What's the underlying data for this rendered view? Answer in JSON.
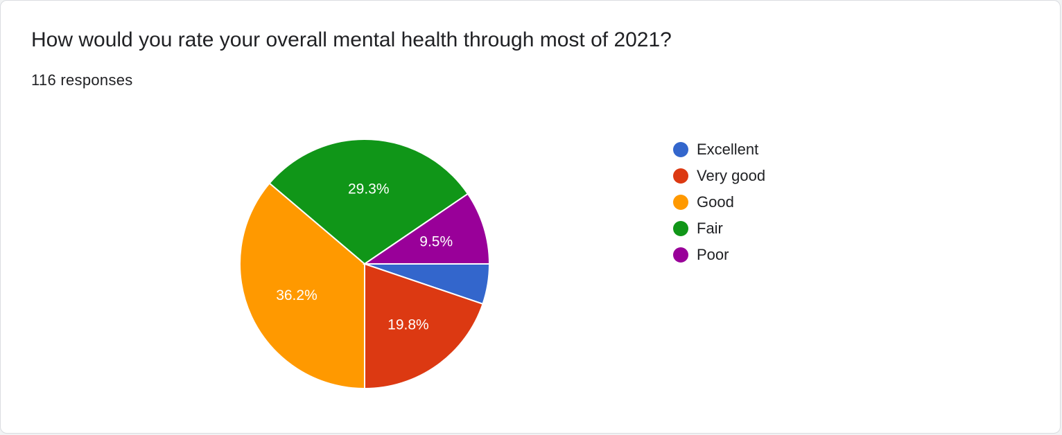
{
  "question": "How would you rate your overall mental health through most of 2021?",
  "responses_label": "116 responses",
  "chart_data": {
    "type": "pie",
    "start_angle_deg": 90,
    "direction": "clockwise",
    "slices": [
      {
        "name": "Excellent",
        "value": 5.2,
        "label": "",
        "color": "#3366cc"
      },
      {
        "name": "Very good",
        "value": 19.8,
        "label": "19.8%",
        "color": "#dc3912"
      },
      {
        "name": "Good",
        "value": 36.2,
        "label": "36.2%",
        "color": "#ff9900"
      },
      {
        "name": "Fair",
        "value": 29.3,
        "label": "29.3%",
        "color": "#109618"
      },
      {
        "name": "Poor",
        "value": 9.5,
        "label": "9.5%",
        "color": "#990099"
      }
    ],
    "legend_position": "right"
  }
}
